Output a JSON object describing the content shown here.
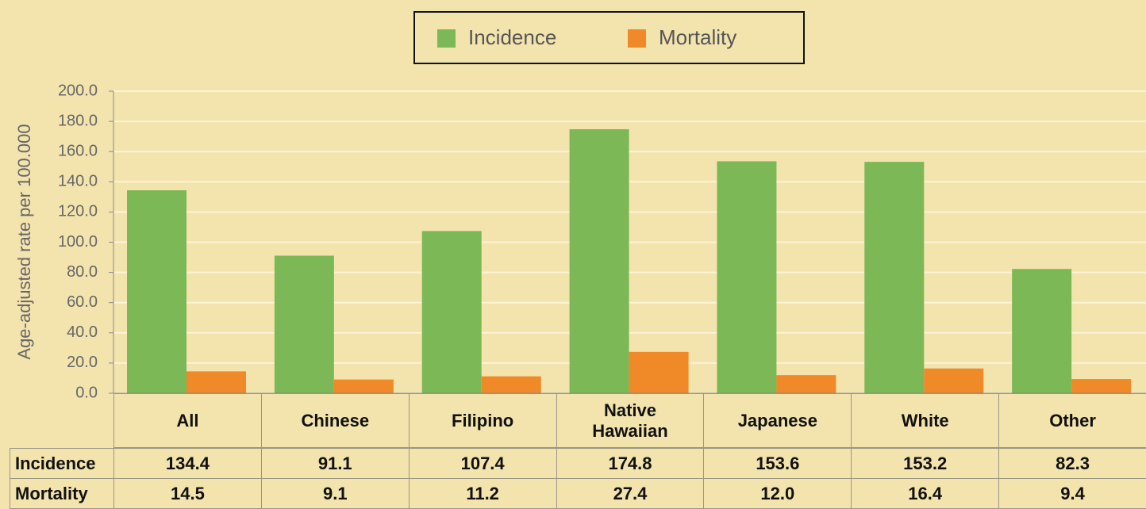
{
  "chart_data": {
    "type": "bar",
    "y_label": "Age-adjusted rate  per 100.000",
    "categories": [
      "All",
      "Chinese",
      "Filipino",
      "Native Hawaiian",
      "Japanese",
      "White",
      "Other"
    ],
    "series": [
      {
        "name": "Incidence",
        "color": "#7db856",
        "values": [
          134.4,
          91.1,
          107.4,
          174.8,
          153.6,
          153.2,
          82.3
        ],
        "value_labels": [
          "134.4",
          "91.1",
          "107.4",
          "174.8",
          "153.6",
          "153.2",
          "82.3"
        ]
      },
      {
        "name": "Mortality",
        "color": "#f08a28",
        "values": [
          14.5,
          9.1,
          11.2,
          27.4,
          12,
          16.4,
          9.4
        ],
        "value_labels": [
          "14.5",
          "9.1",
          "11.2",
          "27.4",
          "12.0",
          "16.4",
          "9.4"
        ]
      }
    ],
    "ylim": [
      0,
      200
    ],
    "yticks": [
      {
        "value": 0,
        "label": "0.0"
      },
      {
        "value": 20,
        "label": "20.0"
      },
      {
        "value": 40,
        "label": "40.0"
      },
      {
        "value": 60,
        "label": "60.0"
      },
      {
        "value": 80,
        "label": "80.0"
      },
      {
        "value": 100,
        "label": "100.0"
      },
      {
        "value": 120,
        "label": "120.0"
      },
      {
        "value": 140,
        "label": "140.0"
      },
      {
        "value": 160,
        "label": "160.0"
      },
      {
        "value": 180,
        "label": "180.0"
      },
      {
        "value": 200,
        "label": "200.0"
      }
    ],
    "grid": true,
    "legend": "top"
  }
}
